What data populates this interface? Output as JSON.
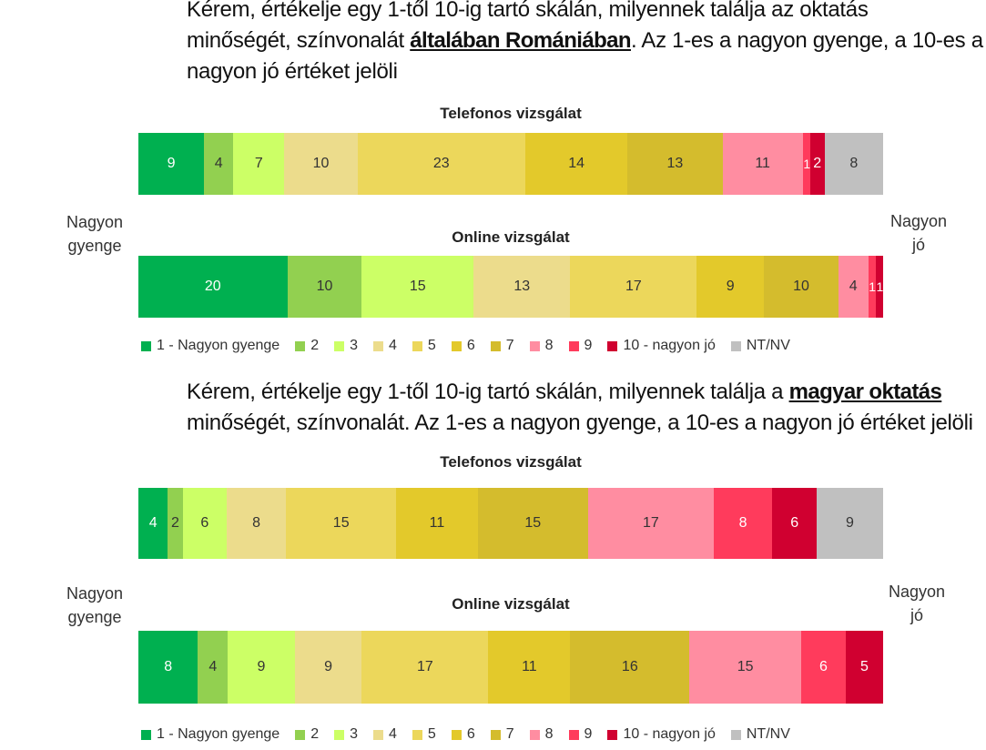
{
  "questions": {
    "q1_pre": "Kérem, értékelje egy 1-től 10-ig tartó skálán, milyennek találja az oktatás",
    "q1_mid_pre": "minőségét, színvonalát ",
    "q1_bold": "általában Romániában",
    "q1_mid_post": ". Az 1-es a nagyon gyenge, a 10-es a",
    "q1_post": "nagyon jó értéket jelöli",
    "q2_pre": "Kérem, értékelje egy 1-től 10-ig tartó skálán, milyennek találja a ",
    "q2_bold": "magyar oktatás",
    "q2_post": "minőségét, színvonalát. Az 1-es a nagyon gyenge, a 10-es a nagyon jó értéket jelöli"
  },
  "side_labels": {
    "left": [
      "Nagyon",
      "gyenge"
    ],
    "right": [
      "Nagyon",
      "jó"
    ]
  },
  "legend": [
    {
      "label": "1 - Nagyon gyenge",
      "color": "#00b050"
    },
    {
      "label": "2",
      "color": "#92d050"
    },
    {
      "label": "3",
      "color": "#ccff66"
    },
    {
      "label": "4",
      "color": "#ecdc8c"
    },
    {
      "label": "5",
      "color": "#ecd75b"
    },
    {
      "label": "6",
      "color": "#e3c92b"
    },
    {
      "label": "7",
      "color": "#d4bc2d"
    },
    {
      "label": "8",
      "color": "#ff8da1"
    },
    {
      "label": "9",
      "color": "#ff3b5c"
    },
    {
      "label": "10 - nagyon jó",
      "color": "#d00030"
    },
    {
      "label": "NT/NV",
      "color": "#c0c0c0"
    }
  ],
  "chart_data": [
    {
      "type": "bar",
      "orientation": "horizontal-stacked",
      "title": "Telefonos vizsgálat",
      "categories": [
        "1 - Nagyon gyenge",
        "2",
        "3",
        "4",
        "5",
        "6",
        "7",
        "8",
        "9",
        "10 - nagyon jó",
        "NT/NV"
      ],
      "values": [
        9,
        4,
        7,
        10,
        23,
        14,
        13,
        11,
        1,
        2,
        8
      ]
    },
    {
      "type": "bar",
      "orientation": "horizontal-stacked",
      "title": "Online vizsgálat",
      "categories": [
        "1 - Nagyon gyenge",
        "2",
        "3",
        "4",
        "5",
        "6",
        "7",
        "8",
        "9",
        "10 - nagyon jó"
      ],
      "values": [
        20,
        10,
        15,
        13,
        17,
        9,
        10,
        4,
        1,
        1
      ]
    },
    {
      "type": "bar",
      "orientation": "horizontal-stacked",
      "title": "Telefonos vizsgálat",
      "categories": [
        "1 - Nagyon gyenge",
        "2",
        "3",
        "4",
        "5",
        "6",
        "7",
        "8",
        "9",
        "10 - nagyon jó",
        "NT/NV"
      ],
      "values": [
        4,
        2,
        6,
        8,
        15,
        11,
        15,
        17,
        8,
        6,
        9
      ]
    },
    {
      "type": "bar",
      "orientation": "horizontal-stacked",
      "title": "Online vizsgálat",
      "categories": [
        "1 - Nagyon gyenge",
        "2",
        "3",
        "4",
        "5",
        "6",
        "7",
        "8",
        "9",
        "10 - nagyon jó"
      ],
      "values": [
        8,
        4,
        9,
        9,
        17,
        11,
        16,
        15,
        6,
        5
      ]
    }
  ]
}
